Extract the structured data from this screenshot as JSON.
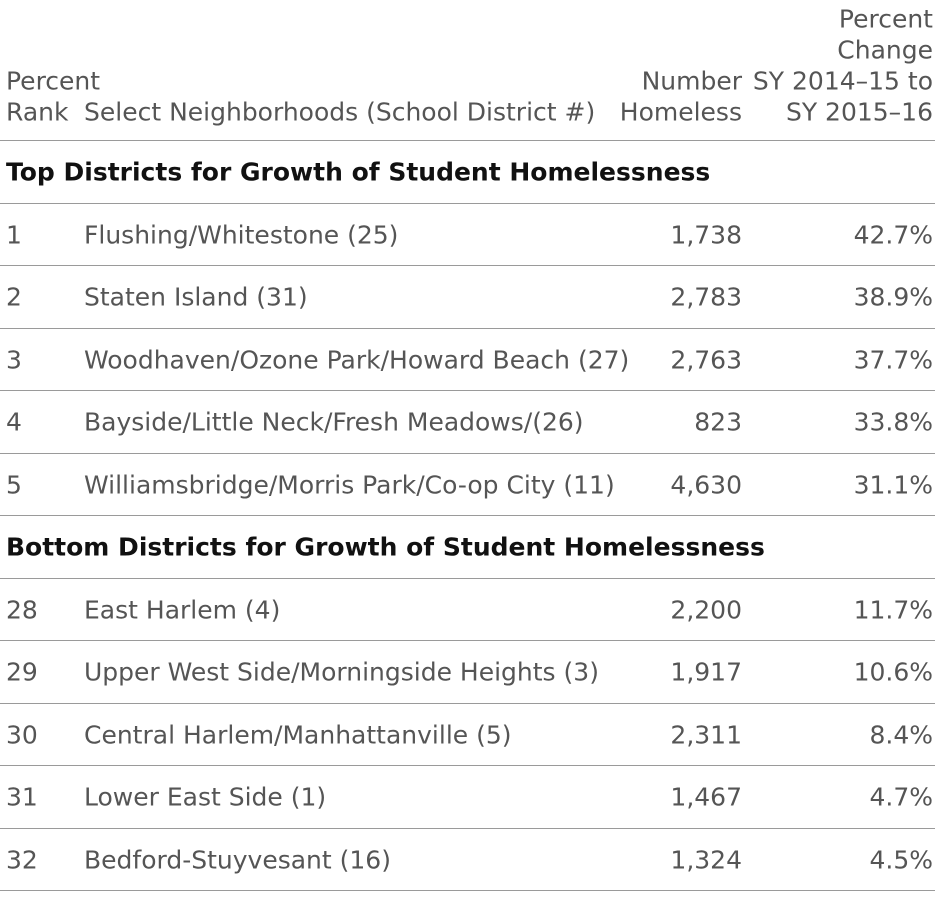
{
  "table": {
    "headers": [
      [
        "Percent",
        "Rank"
      ],
      [
        "Select Neighborhoods (School District #)"
      ],
      [
        "Number",
        "Homeless"
      ],
      [
        "Percent",
        "Change",
        "SY 2014–15 to",
        "SY 2015–16"
      ]
    ],
    "sections": [
      {
        "title": "Top Districts for Growth of Student Homelessness",
        "rows": [
          [
            "1",
            "Flushing/Whitestone (25)",
            "1,738",
            "42.7%"
          ],
          [
            "2",
            "Staten Island (31)",
            "2,783",
            "38.9%"
          ],
          [
            "3",
            "Woodhaven/Ozone Park/Howard Beach (27)",
            "2,763",
            "37.7%"
          ],
          [
            "4",
            "Bayside/Little Neck/Fresh Meadows/(26)",
            "823",
            "33.8%"
          ],
          [
            "5",
            "Williamsbridge/Morris Park/Co-op City (11)",
            "4,630",
            "31.1%"
          ]
        ]
      },
      {
        "title": "Bottom Districts for Growth of Student Homelessness",
        "rows": [
          [
            "28",
            "East Harlem (4)",
            "2,200",
            "11.7%"
          ],
          [
            "29",
            "Upper West Side/Morningside Heights (3)",
            "1,917",
            "10.6%"
          ],
          [
            "30",
            "Central Harlem/Manhattanville (5)",
            "2,311",
            "8.4%"
          ],
          [
            "31",
            "Lower East Side (1)",
            "1,467",
            "4.7%"
          ],
          [
            "32",
            "Bedford-Stuyvesant (16)",
            "1,324",
            "4.5%"
          ]
        ]
      }
    ]
  }
}
